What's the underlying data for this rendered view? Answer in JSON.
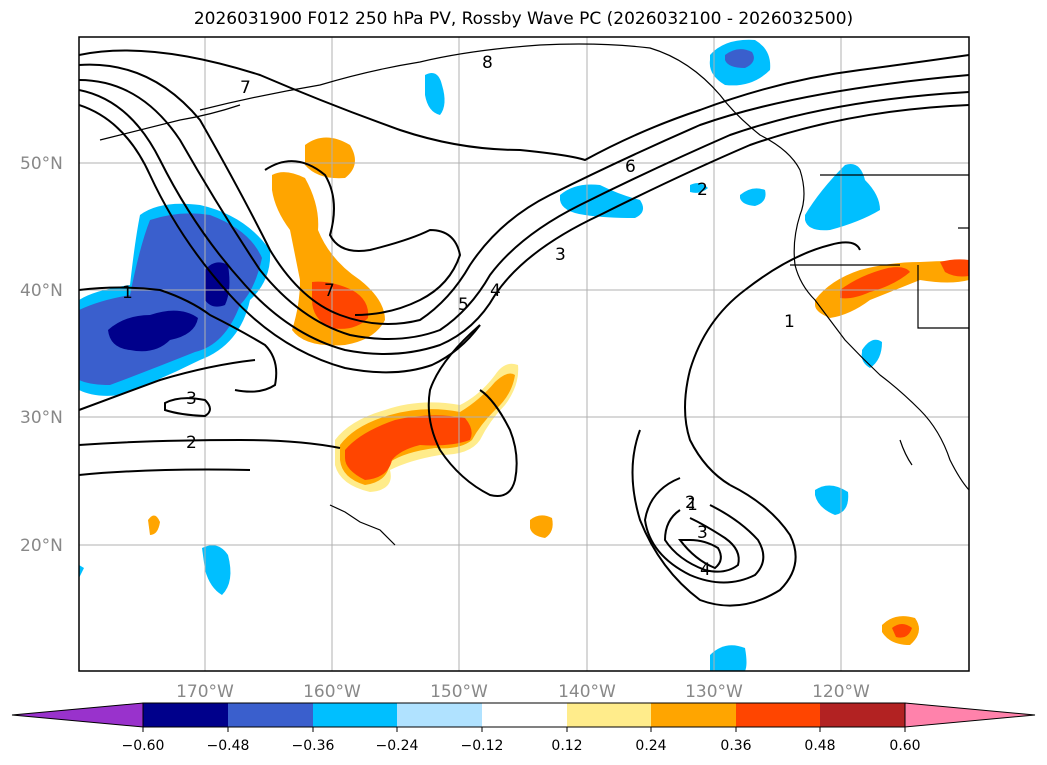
{
  "title": "2026031900 F012 250 hPa PV, Rossby Wave PC (2026032100 - 2026032500)",
  "map": {
    "lat_labels": [
      "50°N",
      "40°N",
      "30°N",
      "20°N"
    ],
    "lon_labels": [
      "170°W",
      "160°W",
      "150°W",
      "140°W",
      "130°W",
      "120°W"
    ],
    "contour_labels": [
      "8",
      "7",
      "6",
      "5",
      "4",
      "3",
      "2",
      "1",
      "1",
      "1",
      "3",
      "2",
      "2",
      "3",
      "4",
      "7"
    ]
  },
  "colorbar": {
    "ticks": [
      "−0.60",
      "−0.48",
      "−0.36",
      "−0.24",
      "−0.12",
      "0.12",
      "0.24",
      "0.36",
      "0.48",
      "0.60"
    ],
    "colors": [
      "#9932cc",
      "#00008b",
      "#3a5fcd",
      "#00bfff",
      "#b0e2ff",
      "#ffffff",
      "#ffec8b",
      "#ffa500",
      "#ff4500",
      "#b22222",
      "#ff82ab"
    ]
  },
  "colors": {
    "neg_strong": "#00008b",
    "neg_mid": "#3a5fcd",
    "neg_light": "#00bfff",
    "neg_faint": "#b0e2ff",
    "pos_faint": "#ffec8b",
    "pos_light": "#ffa500",
    "pos_mid": "#ff4500",
    "pos_strong": "#b22222"
  }
}
